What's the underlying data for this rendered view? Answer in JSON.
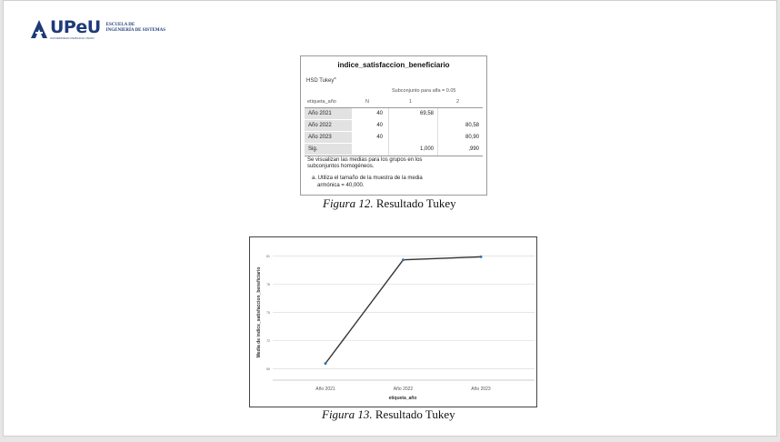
{
  "logo": {
    "brand": "UPeU",
    "subtitle": "UNIVERSIDAD PERUANA UNION",
    "school_line1": "ESCUELA DE",
    "school_line2": "INGENIERÍA DE SISTEMAS",
    "brand_color": "#1d3b78"
  },
  "tukey_table": {
    "title": "indice_satisfaccion_beneficiario",
    "method": "HSD Tukey",
    "method_sup": "a",
    "subset_header": "Subconjunto para alfa = 0.05",
    "col_group": "etiqueta_año",
    "col_n": "N",
    "col_1": "1",
    "col_2": "2",
    "rows": [
      {
        "label": "Año 2021",
        "n": "40",
        "s1": "69,58",
        "s2": ""
      },
      {
        "label": "Año 2022",
        "n": "40",
        "s1": "",
        "s2": "80,58"
      },
      {
        "label": "Año 2023",
        "n": "40",
        "s1": "",
        "s2": "80,90"
      },
      {
        "label": "Sig.",
        "n": "",
        "s1": "1,000",
        "s2": ",990"
      }
    ],
    "note1": "Se visualizan las medias para los grupos en los",
    "note2": "subconjuntos homogéneos.",
    "note3": "a. Utiliza el tamaño de la muestra de la media",
    "note4": "armónica = 40,000."
  },
  "caption12": {
    "figure": "Figura 12.",
    "text": " Resultado Tukey"
  },
  "caption13": {
    "figure": "Figura 13.",
    "text": " Resultado Tukey"
  },
  "chart_data": {
    "type": "line",
    "categories": [
      "Año 2021",
      "Año 2022",
      "Año 2023"
    ],
    "series": [
      {
        "values": [
          69.58,
          80.58,
          80.9
        ],
        "color": "#333333",
        "marker_color": "#2e75b6"
      }
    ],
    "xlabel": "etiqueta_año",
    "ylabel": "Media de indice_satisfaccion_beneficiario",
    "yticks": [
      69,
      72,
      75,
      78,
      81
    ],
    "ylim": [
      68,
      82
    ],
    "grid": true
  }
}
